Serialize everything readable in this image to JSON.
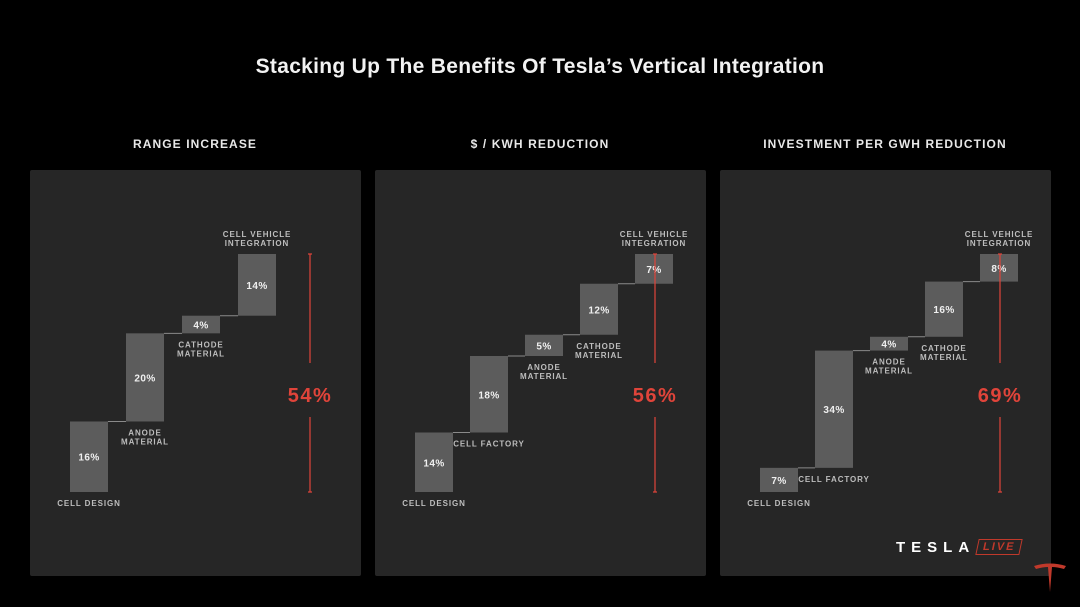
{
  "title": "Stacking Up The Benefits Of Tesla’s Vertical Integration",
  "brand": {
    "wordmark": "TESLA",
    "live_badge": "LIVE",
    "accent": "#e0443a"
  },
  "chart_data": [
    {
      "type": "bar",
      "subtype": "waterfall",
      "title": "RANGE INCREASE",
      "categories": [
        "CELL DESIGN",
        "ANODE MATERIAL",
        "CATHODE MATERIAL",
        "CELL VEHICLE INTEGRATION"
      ],
      "labels": [
        "16%",
        "20%",
        "4%",
        "14%"
      ],
      "values": [
        16,
        20,
        4,
        14
      ],
      "label_positions": [
        "below",
        "below",
        "below",
        "above"
      ],
      "total": 54,
      "total_label": "54%",
      "ylim": [
        0,
        54
      ]
    },
    {
      "type": "bar",
      "subtype": "waterfall",
      "title": "$ / KWH REDUCTION",
      "categories": [
        "CELL DESIGN",
        "CELL FACTORY",
        "ANODE MATERIAL",
        "CATHODE MATERIAL",
        "CELL VEHICLE INTEGRATION"
      ],
      "labels": [
        "14%",
        "18%",
        "5%",
        "12%",
        "7%"
      ],
      "values": [
        14,
        18,
        5,
        12,
        7
      ],
      "label_positions": [
        "below",
        "below",
        "below",
        "below",
        "above"
      ],
      "total": 56,
      "total_label": "56%",
      "ylim": [
        0,
        56
      ]
    },
    {
      "type": "bar",
      "subtype": "waterfall",
      "title": "INVESTMENT PER GWH REDUCTION",
      "categories": [
        "CELL DESIGN",
        "CELL FACTORY",
        "ANODE MATERIAL",
        "CATHODE MATERIAL",
        "CELL VEHICLE INTEGRATION"
      ],
      "labels": [
        "7%",
        "34%",
        "4%",
        "16%",
        "8%"
      ],
      "values": [
        7,
        34,
        4,
        16,
        8
      ],
      "label_positions": [
        "below",
        "below",
        "below",
        "below",
        "above"
      ],
      "total": 69,
      "total_label": "69%",
      "ylim": [
        0,
        69
      ]
    }
  ]
}
